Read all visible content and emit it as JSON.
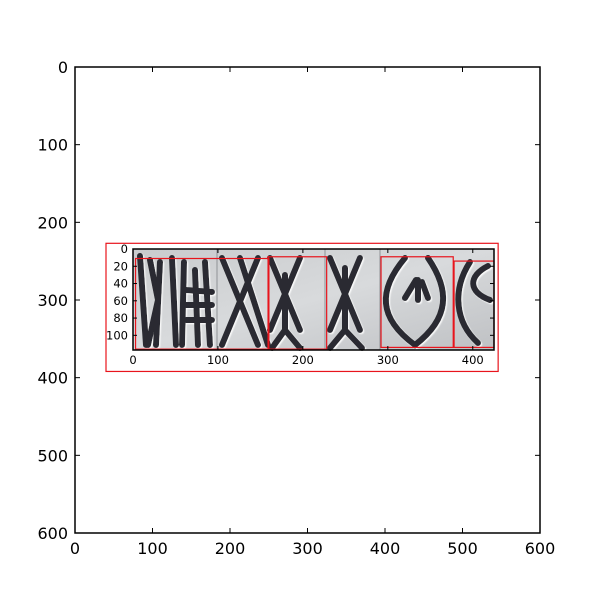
{
  "chart_data": [
    {
      "type": "image",
      "title": "",
      "xlabel": "",
      "ylabel": "",
      "xlim": [
        0,
        600
      ],
      "ylim": [
        600,
        0
      ],
      "y_inverted": true,
      "grid": false,
      "x_ticks": [
        0,
        100,
        200,
        300,
        400,
        500,
        600
      ],
      "y_ticks": [
        0,
        100,
        200,
        300,
        400,
        500,
        600
      ],
      "x_tick_labels": [
        "0",
        "100",
        "200",
        "300",
        "400",
        "500",
        "600"
      ],
      "y_tick_labels": [
        "0",
        "100",
        "200",
        "300",
        "400",
        "500",
        "600"
      ],
      "bounding_boxes_color": "#e8141c",
      "bounding_boxes": [
        {
          "x0": 40,
          "y0": 227,
          "x1": 546,
          "y1": 392
        }
      ]
    },
    {
      "type": "image",
      "title": "",
      "xlabel": "",
      "ylabel": "",
      "xlim": [
        0,
        425
      ],
      "ylim": [
        117,
        0
      ],
      "y_inverted": true,
      "grid": false,
      "x_ticks": [
        0,
        100,
        200,
        300,
        400
      ],
      "y_ticks": [
        0,
        20,
        40,
        60,
        80,
        100
      ],
      "x_tick_labels": [
        "0",
        "100",
        "200",
        "300",
        "400"
      ],
      "y_tick_labels": [
        "0",
        "20",
        "40",
        "60",
        "80",
        "100"
      ],
      "bounding_boxes_color": "#e8141c",
      "bounding_boxes": [
        {
          "x0": 3,
          "y0": 11,
          "x1": 160,
          "y1": 116
        },
        {
          "x0": 159,
          "y0": 9,
          "x1": 228,
          "y1": 116
        },
        {
          "x0": 292,
          "y0": 9,
          "x1": 377,
          "y1": 114
        },
        {
          "x0": 378,
          "y0": 14,
          "x1": 425,
          "y1": 114
        }
      ]
    }
  ]
}
